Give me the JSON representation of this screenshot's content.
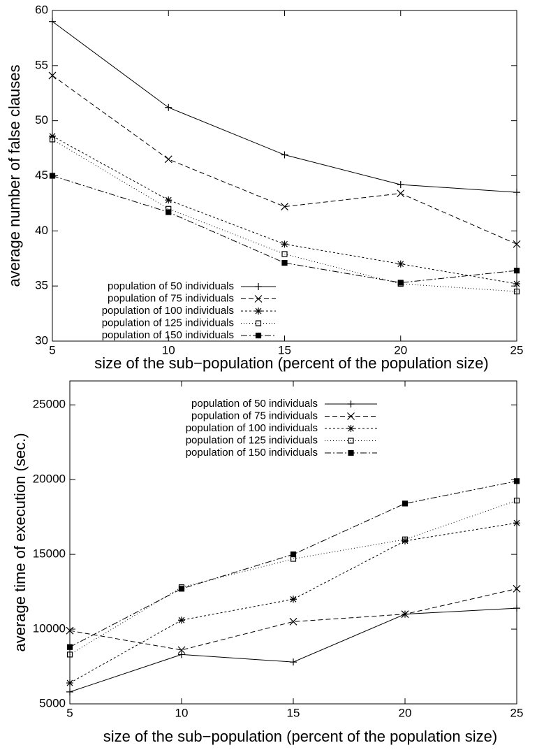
{
  "charts": [
    {
      "chart_data": {
        "type": "line",
        "xlabel": "size of the sub−population (percent of the population size)",
        "ylabel": "average number of false clauses",
        "x": [
          5,
          10,
          15,
          20,
          25
        ],
        "xlim": [
          5,
          25
        ],
        "xticks": [
          5,
          10,
          15,
          20,
          25
        ],
        "ylim": [
          30,
          60
        ],
        "yticks": [
          30,
          35,
          40,
          45,
          50,
          55,
          60
        ],
        "legend": "lower left",
        "series": [
          {
            "name": "population of 50 individuals",
            "color": "#000000",
            "dash": "solid",
            "marker": "plus",
            "values": [
              59.0,
              51.2,
              46.9,
              44.2,
              43.5
            ]
          },
          {
            "name": "population of 75 individuals",
            "color": "#000000",
            "dash": "dashed",
            "marker": "cross",
            "values": [
              54.1,
              46.5,
              42.2,
              43.4,
              38.8
            ]
          },
          {
            "name": "population of 100 individuals",
            "color": "#000000",
            "dash": "short-dashed",
            "marker": "star",
            "values": [
              48.6,
              42.8,
              38.8,
              37.0,
              35.2
            ]
          },
          {
            "name": "population of 125 individuals",
            "color": "#000000",
            "dash": "dotted",
            "marker": "open-square",
            "values": [
              48.3,
              42.0,
              37.9,
              35.2,
              34.5
            ]
          },
          {
            "name": "population of 150 individuals",
            "color": "#000000",
            "dash": "dash-dot",
            "marker": "filled-square",
            "values": [
              45.0,
              41.7,
              37.1,
              35.3,
              36.4
            ]
          }
        ]
      }
    },
    {
      "chart_data": {
        "type": "line",
        "xlabel": "size of the sub−population (percent of the population size)",
        "ylabel": "average time of execution (sec.)",
        "x": [
          5,
          10,
          15,
          20,
          25
        ],
        "xlim": [
          5,
          25
        ],
        "xticks": [
          5,
          10,
          15,
          20,
          25
        ],
        "ylim": [
          5000,
          26600
        ],
        "yticks": [
          5000,
          10000,
          15000,
          20000,
          25000
        ],
        "legend": "upper center",
        "series": [
          {
            "name": "population of 50 individuals",
            "color": "#000000",
            "dash": "solid",
            "marker": "plus",
            "values": [
              5800,
              8300,
              7800,
              11000,
              11400
            ]
          },
          {
            "name": "population of 75 individuals",
            "color": "#000000",
            "dash": "dashed",
            "marker": "cross",
            "values": [
              9900,
              8600,
              10500,
              11000,
              12700
            ]
          },
          {
            "name": "population of 100 individuals",
            "color": "#000000",
            "dash": "short-dashed",
            "marker": "star",
            "values": [
              6400,
              10600,
              12000,
              15900,
              17100
            ]
          },
          {
            "name": "population of 125 individuals",
            "color": "#000000",
            "dash": "dotted",
            "marker": "open-square",
            "values": [
              8300,
              12800,
              14700,
              16000,
              18600
            ]
          },
          {
            "name": "population of 150 individuals",
            "color": "#000000",
            "dash": "dash-dot",
            "marker": "filled-square",
            "values": [
              8800,
              12700,
              15000,
              18400,
              19900
            ]
          }
        ]
      }
    }
  ]
}
